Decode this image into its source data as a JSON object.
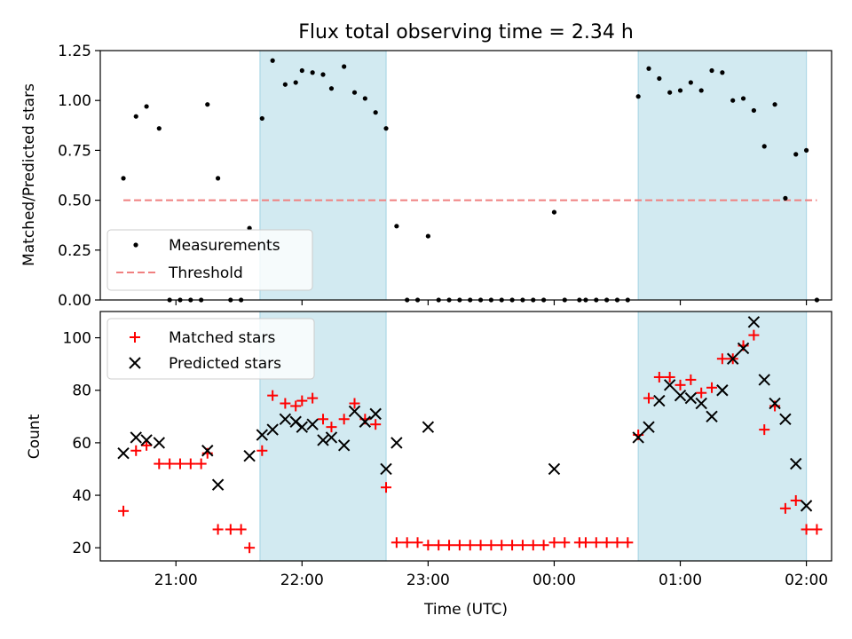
{
  "chart_data": [
    {
      "type": "scatter",
      "title": "Flux total observing time = 2.34 h",
      "xlabel": "",
      "ylabel": "Matched/Predicted stars",
      "xlim": [
        "20:24",
        "02:12"
      ],
      "ylim": [
        0,
        1.25
      ],
      "yticks": [
        0.0,
        0.25,
        0.5,
        0.75,
        1.0,
        1.25
      ],
      "ytick_labels": [
        "0.00",
        "0.25",
        "0.50",
        "0.75",
        "1.00",
        "1.25"
      ],
      "xtick_labels": [],
      "legend_location": "lower-left",
      "shaded_intervals": [
        [
          "21:40",
          "22:40"
        ],
        [
          "00:40",
          "02:00"
        ]
      ],
      "threshold": {
        "name": "Threshold",
        "value": 0.5,
        "x_range": [
          "20:35",
          "02:05"
        ],
        "color": "#f08080",
        "style": "dashed"
      },
      "series": [
        {
          "name": "Measurements",
          "color": "#000000",
          "marker": "dot",
          "points": [
            [
              "20:35",
              0.61
            ],
            [
              "20:41",
              0.92
            ],
            [
              "20:46",
              0.97
            ],
            [
              "20:52",
              0.86
            ],
            [
              "20:57",
              0.0
            ],
            [
              "21:02",
              0.0
            ],
            [
              "21:07",
              0.0
            ],
            [
              "21:12",
              0.0
            ],
            [
              "21:15",
              0.98
            ],
            [
              "21:20",
              0.61
            ],
            [
              "21:26",
              0.0
            ],
            [
              "21:31",
              0.0
            ],
            [
              "21:35",
              0.36
            ],
            [
              "21:41",
              0.91
            ],
            [
              "21:46",
              1.2
            ],
            [
              "21:52",
              1.08
            ],
            [
              "21:57",
              1.09
            ],
            [
              "22:00",
              1.15
            ],
            [
              "22:05",
              1.14
            ],
            [
              "22:10",
              1.13
            ],
            [
              "22:14",
              1.06
            ],
            [
              "22:20",
              1.17
            ],
            [
              "22:25",
              1.04
            ],
            [
              "22:30",
              1.01
            ],
            [
              "22:35",
              0.94
            ],
            [
              "22:40",
              0.86
            ],
            [
              "22:45",
              0.37
            ],
            [
              "22:50",
              0.0
            ],
            [
              "22:55",
              0.0
            ],
            [
              "23:00",
              0.32
            ],
            [
              "23:05",
              0.0
            ],
            [
              "23:10",
              0.0
            ],
            [
              "23:15",
              0.0
            ],
            [
              "23:20",
              0.0
            ],
            [
              "23:25",
              0.0
            ],
            [
              "23:30",
              0.0
            ],
            [
              "23:35",
              0.0
            ],
            [
              "23:40",
              0.0
            ],
            [
              "23:45",
              0.0
            ],
            [
              "23:50",
              0.0
            ],
            [
              "23:55",
              0.0
            ],
            [
              "00:00",
              0.44
            ],
            [
              "00:05",
              0.0
            ],
            [
              "00:12",
              0.0
            ],
            [
              "00:15",
              0.0
            ],
            [
              "00:20",
              0.0
            ],
            [
              "00:25",
              0.0
            ],
            [
              "00:30",
              0.0
            ],
            [
              "00:35",
              0.0
            ],
            [
              "00:40",
              1.02
            ],
            [
              "00:45",
              1.16
            ],
            [
              "00:50",
              1.11
            ],
            [
              "00:55",
              1.04
            ],
            [
              "01:00",
              1.05
            ],
            [
              "01:05",
              1.09
            ],
            [
              "01:10",
              1.05
            ],
            [
              "01:15",
              1.15
            ],
            [
              "01:20",
              1.14
            ],
            [
              "01:25",
              1.0
            ],
            [
              "01:30",
              1.01
            ],
            [
              "01:35",
              0.95
            ],
            [
              "01:40",
              0.77
            ],
            [
              "01:45",
              0.98
            ],
            [
              "01:50",
              0.51
            ],
            [
              "01:55",
              0.73
            ],
            [
              "02:00",
              0.75
            ],
            [
              "02:05",
              0.0
            ]
          ]
        }
      ]
    },
    {
      "type": "scatter",
      "title": "",
      "xlabel": "Time (UTC)",
      "ylabel": "Count",
      "xlim": [
        "20:24",
        "02:12"
      ],
      "ylim": [
        15,
        110
      ],
      "yticks": [
        20,
        40,
        60,
        80,
        100
      ],
      "xticks": [
        "21:00",
        "22:00",
        "23:00",
        "00:00",
        "01:00",
        "02:00"
      ],
      "legend_location": "upper-left",
      "shaded_intervals": [
        [
          "21:40",
          "22:40"
        ],
        [
          "00:40",
          "02:00"
        ]
      ],
      "series": [
        {
          "name": "Matched stars",
          "color": "#ff0000",
          "marker": "plus",
          "points": [
            [
              "20:35",
              34
            ],
            [
              "20:41",
              57
            ],
            [
              "20:46",
              59
            ],
            [
              "20:52",
              52
            ],
            [
              "20:57",
              52
            ],
            [
              "21:02",
              52
            ],
            [
              "21:07",
              52
            ],
            [
              "21:12",
              52
            ],
            [
              "21:15",
              56
            ],
            [
              "21:20",
              27
            ],
            [
              "21:26",
              27
            ],
            [
              "21:31",
              27
            ],
            [
              "21:35",
              20
            ],
            [
              "21:41",
              57
            ],
            [
              "21:46",
              78
            ],
            [
              "21:52",
              75
            ],
            [
              "21:57",
              74
            ],
            [
              "22:00",
              76
            ],
            [
              "22:05",
              77
            ],
            [
              "22:10",
              69
            ],
            [
              "22:14",
              66
            ],
            [
              "22:20",
              69
            ],
            [
              "22:25",
              75
            ],
            [
              "22:30",
              69
            ],
            [
              "22:35",
              67
            ],
            [
              "22:40",
              43
            ],
            [
              "22:45",
              22
            ],
            [
              "22:50",
              22
            ],
            [
              "22:55",
              22
            ],
            [
              "23:00",
              21
            ],
            [
              "23:05",
              21
            ],
            [
              "23:10",
              21
            ],
            [
              "23:15",
              21
            ],
            [
              "23:20",
              21
            ],
            [
              "23:25",
              21
            ],
            [
              "23:30",
              21
            ],
            [
              "23:35",
              21
            ],
            [
              "23:40",
              21
            ],
            [
              "23:45",
              21
            ],
            [
              "23:50",
              21
            ],
            [
              "23:55",
              21
            ],
            [
              "00:00",
              22
            ],
            [
              "00:05",
              22
            ],
            [
              "00:12",
              22
            ],
            [
              "00:15",
              22
            ],
            [
              "00:20",
              22
            ],
            [
              "00:25",
              22
            ],
            [
              "00:30",
              22
            ],
            [
              "00:35",
              22
            ],
            [
              "00:40",
              63
            ],
            [
              "00:45",
              77
            ],
            [
              "00:50",
              85
            ],
            [
              "00:55",
              85
            ],
            [
              "01:00",
              82
            ],
            [
              "01:05",
              84
            ],
            [
              "01:10",
              79
            ],
            [
              "01:15",
              81
            ],
            [
              "01:20",
              92
            ],
            [
              "01:25",
              92
            ],
            [
              "01:30",
              97
            ],
            [
              "01:35",
              101
            ],
            [
              "01:40",
              65
            ],
            [
              "01:45",
              74
            ],
            [
              "01:50",
              35
            ],
            [
              "01:55",
              38
            ],
            [
              "02:00",
              27
            ],
            [
              "02:05",
              27
            ]
          ]
        },
        {
          "name": "Predicted stars",
          "color": "#000000",
          "marker": "x",
          "points": [
            [
              "20:35",
              56
            ],
            [
              "20:41",
              62
            ],
            [
              "20:46",
              61
            ],
            [
              "20:52",
              60
            ],
            [
              "21:15",
              57
            ],
            [
              "21:20",
              44
            ],
            [
              "21:35",
              55
            ],
            [
              "21:41",
              63
            ],
            [
              "21:46",
              65
            ],
            [
              "21:52",
              69
            ],
            [
              "21:57",
              68
            ],
            [
              "22:00",
              66
            ],
            [
              "22:05",
              67
            ],
            [
              "22:10",
              61
            ],
            [
              "22:14",
              62
            ],
            [
              "22:20",
              59
            ],
            [
              "22:25",
              72
            ],
            [
              "22:30",
              68
            ],
            [
              "22:35",
              71
            ],
            [
              "22:40",
              50
            ],
            [
              "22:45",
              60
            ],
            [
              "23:00",
              66
            ],
            [
              "00:00",
              50
            ],
            [
              "00:40",
              62
            ],
            [
              "00:45",
              66
            ],
            [
              "00:50",
              76
            ],
            [
              "00:55",
              82
            ],
            [
              "01:00",
              78
            ],
            [
              "01:05",
              77
            ],
            [
              "01:10",
              75
            ],
            [
              "01:15",
              70
            ],
            [
              "01:20",
              80
            ],
            [
              "01:25",
              92
            ],
            [
              "01:30",
              96
            ],
            [
              "01:35",
              106
            ],
            [
              "01:40",
              84
            ],
            [
              "01:45",
              75
            ],
            [
              "01:50",
              69
            ],
            [
              "01:55",
              52
            ],
            [
              "02:00",
              36
            ]
          ]
        }
      ]
    }
  ],
  "colors": {
    "shade": "#add8e6",
    "axis": "#000000"
  }
}
